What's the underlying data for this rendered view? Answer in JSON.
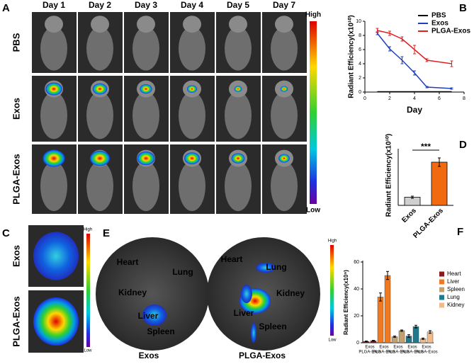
{
  "panel_labels": [
    "A",
    "B",
    "C",
    "D",
    "E",
    "F"
  ],
  "panel_a": {
    "columns": [
      "Day 1",
      "Day 2",
      "Day 3",
      "Day 4",
      "Day 5",
      "Day 7"
    ],
    "rows": [
      "PBS",
      "Exos",
      "PLGA-Exos"
    ],
    "scale": [
      "High",
      "Low"
    ]
  },
  "panel_c": {
    "rows": [
      "Exos",
      "PLGA-Exos"
    ],
    "scale": [
      "High",
      "Low"
    ]
  },
  "panel_e": {
    "captions": [
      "Exos",
      "PLGA-Exos"
    ],
    "organs_left": [
      "Heart",
      "Lung",
      "Kidney",
      "Liver",
      "Spleen"
    ],
    "organs_right": [
      "Heart",
      "Lung",
      "Kidney",
      "Liver",
      "Spleen"
    ],
    "scale": [
      "High",
      "Low"
    ]
  },
  "chart_data": [
    {
      "type": "line",
      "x_label": "Day",
      "y_label": "Radiant Efficiency(x10¹⁰)",
      "x": [
        1,
        2,
        3,
        4,
        5,
        7
      ],
      "xlim": [
        0,
        8
      ],
      "xticks": [
        0,
        2,
        4,
        6,
        8
      ],
      "ylim": [
        0,
        10
      ],
      "yticks": [
        0,
        2,
        4,
        6,
        8,
        10
      ],
      "series": [
        {
          "name": "PBS",
          "color": "#000000",
          "values": [
            0.05,
            0.05,
            0.05,
            0.05,
            0.05,
            0.05
          ]
        },
        {
          "name": "Exos",
          "color": "#1f3fbf",
          "values": [
            8.3,
            6.1,
            4.5,
            2.7,
            0.7,
            0.5
          ],
          "errors": [
            0.2,
            0.3,
            0.5,
            0.3,
            0.1,
            0.1
          ]
        },
        {
          "name": "PLGA-Exos",
          "color": "#e02020",
          "values": [
            8.7,
            8.3,
            7.5,
            6.0,
            4.5,
            4.0
          ],
          "errors": [
            0.3,
            0.3,
            0.3,
            0.6,
            0.2,
            0.4
          ]
        }
      ]
    },
    {
      "type": "bar",
      "y_label": "Radiant Efficiency(x10¹⁰)",
      "categories": [
        "Exos",
        "PLGA-Exos"
      ],
      "values": [
        2.3,
        12.2
      ],
      "errors": [
        0.3,
        1.2
      ],
      "colors": [
        "#cfcfcf",
        "#f26a10"
      ],
      "ylim": [
        0,
        15
      ],
      "annotation": "***"
    },
    {
      "type": "grouped-bar",
      "y_label": "Radiant Efficiency(x10⁹)",
      "categories": [
        "Exos",
        "PLGA-Exos"
      ],
      "ylim": [
        0,
        60
      ],
      "yticks": [
        0,
        20,
        40,
        60
      ],
      "series": [
        {
          "name": "Heart",
          "color": "#8b1a1a",
          "values": [
            1,
            1.5
          ],
          "errors": [
            0.3,
            0.3
          ]
        },
        {
          "name": "Liver",
          "color": "#f07820",
          "values": [
            34,
            50
          ],
          "errors": [
            3,
            3
          ]
        },
        {
          "name": "Spleen",
          "color": "#c2a070",
          "values": [
            4.5,
            9
          ],
          "errors": [
            0.5,
            0.5
          ]
        },
        {
          "name": "Lung",
          "color": "#1e7a8c",
          "values": [
            5,
            12
          ],
          "errors": [
            1,
            1
          ]
        },
        {
          "name": "Kidney",
          "color": "#f2b98a",
          "values": [
            3,
            8
          ],
          "errors": [
            0.5,
            1
          ]
        }
      ]
    }
  ]
}
